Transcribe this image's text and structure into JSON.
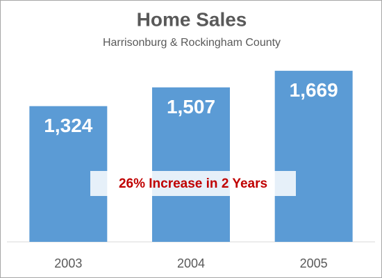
{
  "chart_data": {
    "type": "bar",
    "title": "Home Sales",
    "subtitle": "Harrisonburg & Rockingham County",
    "categories": [
      "2003",
      "2004",
      "2005"
    ],
    "values": [
      1324,
      1507,
      1669
    ],
    "value_labels": [
      "1,324",
      "1,507",
      "1,669"
    ],
    "color": "#5b9bd5",
    "annotation": "26% Increase in 2 Years",
    "annotation_color": "#c00000"
  }
}
